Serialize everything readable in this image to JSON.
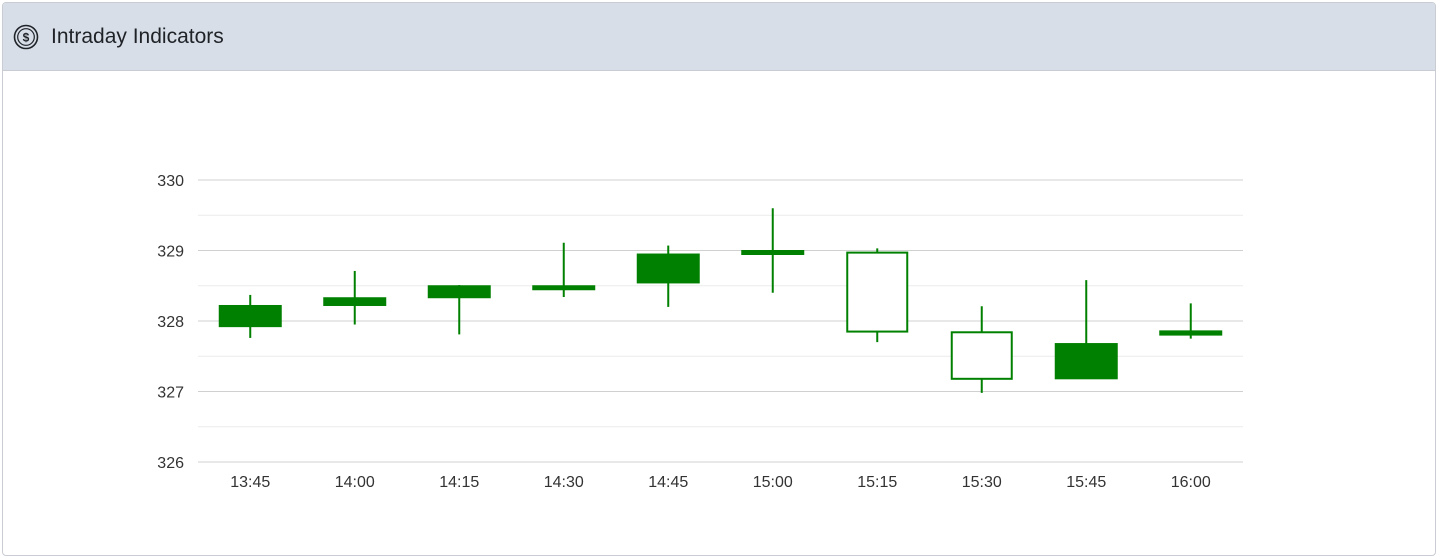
{
  "panel": {
    "title": "Intraday Indicators",
    "icon": "dollar-circle-icon"
  },
  "colors": {
    "up": "#008000",
    "grid": "#d0d0d0",
    "minorGrid": "#ececec",
    "axisText": "#333333"
  },
  "chart_data": {
    "type": "candlestick",
    "title": "",
    "xlabel": "",
    "ylabel": "",
    "ylim": [
      326,
      330
    ],
    "yticks": [
      326,
      327,
      328,
      329,
      330
    ],
    "categories": [
      "13:45",
      "14:00",
      "14:15",
      "14:30",
      "14:45",
      "15:00",
      "15:15",
      "15:30",
      "15:45",
      "16:00"
    ],
    "series": [
      {
        "time": "13:45",
        "open": 327.92,
        "high": 328.37,
        "low": 327.76,
        "close": 328.22,
        "filled": true
      },
      {
        "time": "14:00",
        "open": 328.22,
        "high": 328.71,
        "low": 327.95,
        "close": 328.33,
        "filled": true
      },
      {
        "time": "14:15",
        "open": 328.33,
        "high": 328.51,
        "low": 327.81,
        "close": 328.5,
        "filled": true
      },
      {
        "time": "14:30",
        "open": 328.45,
        "high": 329.11,
        "low": 328.34,
        "close": 328.5,
        "filled": true
      },
      {
        "time": "14:45",
        "open": 328.54,
        "high": 329.07,
        "low": 328.2,
        "close": 328.95,
        "filled": true
      },
      {
        "time": "15:00",
        "open": 328.95,
        "high": 329.6,
        "low": 328.4,
        "close": 329.0,
        "filled": true
      },
      {
        "time": "15:15",
        "open": 328.97,
        "high": 329.03,
        "low": 327.7,
        "close": 327.85,
        "filled": false
      },
      {
        "time": "15:30",
        "open": 327.84,
        "high": 328.21,
        "low": 326.98,
        "close": 327.18,
        "filled": false
      },
      {
        "time": "15:45",
        "open": 327.18,
        "high": 328.58,
        "low": 327.18,
        "close": 327.68,
        "filled": true
      },
      {
        "time": "16:00",
        "open": 327.8,
        "high": 328.25,
        "low": 327.75,
        "close": 327.86,
        "filled": true
      }
    ],
    "grid": true,
    "legend": "none"
  }
}
